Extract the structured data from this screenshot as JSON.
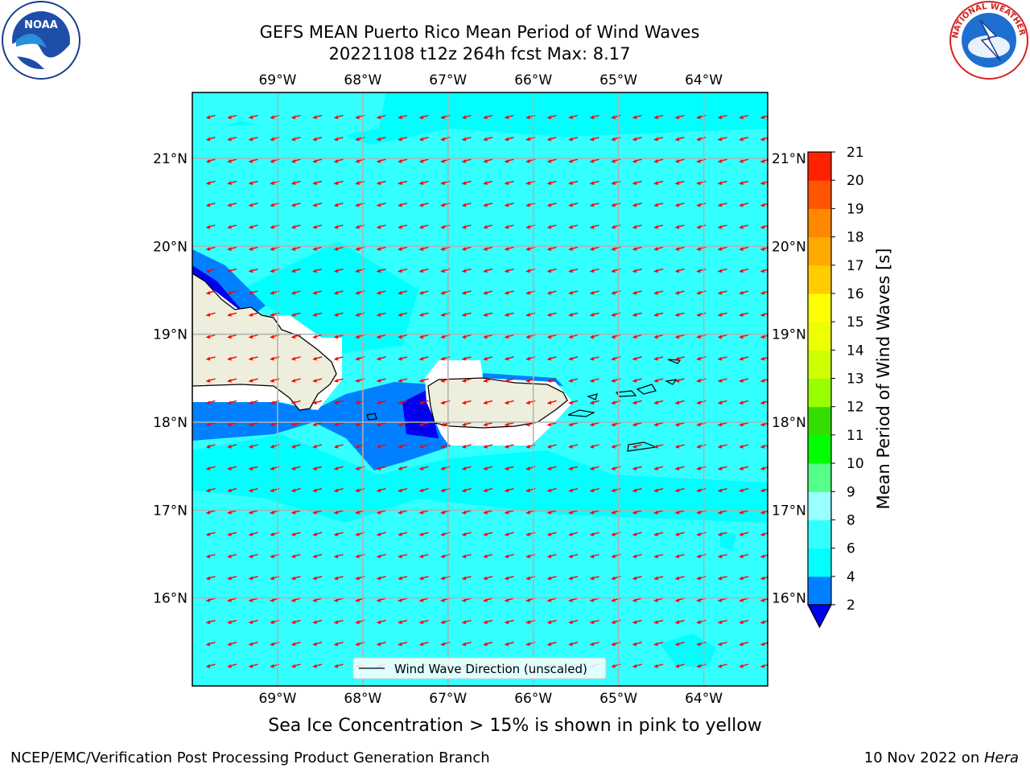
{
  "title": {
    "line1": "GEFS MEAN Puerto Rico Mean Period of Wind Waves",
    "line2": "20221108 t12z 264h fcst   Max: 8.17"
  },
  "logos": {
    "left": {
      "icon": "noaa-logo",
      "text": "NOAA"
    },
    "right": {
      "icon": "nws-logo",
      "text": "NATIONAL WEATHER SERVICE"
    }
  },
  "map": {
    "lon_labels": [
      "69°W",
      "68°W",
      "67°W",
      "66°W",
      "65°W",
      "64°W"
    ],
    "lat_labels": [
      "21°N",
      "20°N",
      "19°N",
      "18°N",
      "17°N",
      "16°N"
    ],
    "lon_values": [
      -69,
      -68,
      -67,
      -66,
      -65,
      -64
    ],
    "lat_values": [
      21,
      20,
      19,
      18,
      17,
      16
    ],
    "extent": {
      "lon_min": -70.0,
      "lon_max": -63.25,
      "lat_min": 15.0,
      "lat_max": 21.75
    },
    "legend_label": "Wind Wave Direction (unscaled)",
    "colors": {
      "ocean_base": "#33ffff",
      "ocean_light": "#66ffff",
      "band_4_6": "#00ffff",
      "band_2_4": "#0080ff",
      "band_lt2": "#0000ee",
      "land": "#eeeedd",
      "arrow": "#ff0000",
      "grid": "#b0b0b0"
    },
    "wind_direction": "from east-northeast"
  },
  "colorbar": {
    "label": "Mean Period of Wind Waves [s]",
    "ticks": [
      "2",
      "4",
      "6",
      "8",
      "9",
      "10",
      "11",
      "12",
      "13",
      "14",
      "15",
      "16",
      "17",
      "18",
      "19",
      "20",
      "21"
    ],
    "colors": [
      "#0080ff",
      "#00ffff",
      "#33ffff",
      "#99ffff",
      "#55ff88",
      "#00ff00",
      "#33dd00",
      "#99ff00",
      "#ccff00",
      "#eeff00",
      "#ffff00",
      "#ffcc00",
      "#ffaa00",
      "#ff8800",
      "#ff5500",
      "#ff2200",
      "#ff0000"
    ],
    "under_color": "#0000ee"
  },
  "caption": "Sea Ice Concentration > 15% is shown in pink to yellow",
  "footer": {
    "left": "NCEP/EMC/Verification Post Processing Product Generation Branch",
    "right_date": "10 Nov 2022 on ",
    "right_host": "Hera"
  }
}
